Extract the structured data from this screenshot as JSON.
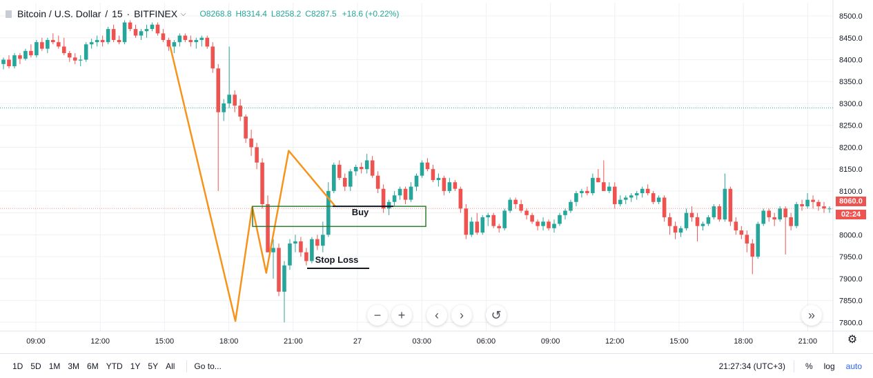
{
  "legend": {
    "symbol": "Bitcoin / U.S. Dollar",
    "interval": "15",
    "exchange": "BITFINEX",
    "o_label": "O",
    "o": "8268.8",
    "h_label": "H",
    "h": "8314.4",
    "l_label": "L",
    "l": "8258.2",
    "c_label": "C",
    "c": "8287.5",
    "change": "+18.6 (+0.22%)"
  },
  "chart_data": {
    "type": "candlestick",
    "title": "Bitcoin / U.S. Dollar",
    "xlabel": "",
    "ylabel": "",
    "ylim": [
      7780,
      8530
    ],
    "y_ticks": [
      7800,
      7850,
      7900,
      7950,
      8000,
      8050,
      8100,
      8150,
      8200,
      8250,
      8300,
      8350,
      8400,
      8450,
      8500
    ],
    "x_ticks": [
      "09:00",
      "12:00",
      "15:00",
      "18:00",
      "21:00",
      "27",
      "03:00",
      "06:00",
      "09:00",
      "12:00",
      "15:00",
      "18:00",
      "21:00"
    ],
    "last_price": "8060.0",
    "countdown": "02:24",
    "reference_price_line": 8290,
    "grid": true,
    "candles": [
      [
        8390,
        8405,
        8378,
        8400
      ],
      [
        8400,
        8410,
        8380,
        8385
      ],
      [
        8385,
        8415,
        8380,
        8410
      ],
      [
        8410,
        8415,
        8390,
        8402
      ],
      [
        8402,
        8425,
        8398,
        8420
      ],
      [
        8420,
        8435,
        8405,
        8410
      ],
      [
        8410,
        8445,
        8405,
        8440
      ],
      [
        8440,
        8450,
        8420,
        8425
      ],
      [
        8425,
        8450,
        8415,
        8445
      ],
      [
        8445,
        8460,
        8435,
        8440
      ],
      [
        8440,
        8455,
        8425,
        8430
      ],
      [
        8430,
        8450,
        8410,
        8415
      ],
      [
        8415,
        8420,
        8395,
        8405
      ],
      [
        8405,
        8415,
        8390,
        8398
      ],
      [
        8398,
        8410,
        8385,
        8400
      ],
      [
        8400,
        8440,
        8395,
        8435
      ],
      [
        8435,
        8448,
        8425,
        8440
      ],
      [
        8440,
        8455,
        8430,
        8445
      ],
      [
        8445,
        8455,
        8430,
        8440
      ],
      [
        8440,
        8475,
        8435,
        8470
      ],
      [
        8470,
        8480,
        8440,
        8445
      ],
      [
        8445,
        8455,
        8435,
        8440
      ],
      [
        8440,
        8490,
        8435,
        8485
      ],
      [
        8485,
        8490,
        8465,
        8470
      ],
      [
        8470,
        8480,
        8450,
        8455
      ],
      [
        8455,
        8470,
        8445,
        8465
      ],
      [
        8465,
        8480,
        8450,
        8470
      ],
      [
        8470,
        8485,
        8465,
        8480
      ],
      [
        8480,
        8485,
        8455,
        8460
      ],
      [
        8460,
        8470,
        8440,
        8445
      ],
      [
        8445,
        8450,
        8420,
        8430
      ],
      [
        8430,
        8445,
        8415,
        8440
      ],
      [
        8440,
        8460,
        8430,
        8455
      ],
      [
        8455,
        8460,
        8440,
        8445
      ],
      [
        8445,
        8455,
        8430,
        8440
      ],
      [
        8440,
        8450,
        8425,
        8445
      ],
      [
        8445,
        8455,
        8430,
        8450
      ],
      [
        8450,
        8455,
        8425,
        8430
      ],
      [
        8430,
        8440,
        8370,
        8380
      ],
      [
        8380,
        8390,
        8100,
        8280
      ],
      [
        8280,
        8310,
        8260,
        8300
      ],
      [
        8300,
        8430,
        8290,
        8320
      ],
      [
        8320,
        8330,
        8280,
        8295
      ],
      [
        8295,
        8310,
        8260,
        8270
      ],
      [
        8270,
        8275,
        8210,
        8220
      ],
      [
        8220,
        8240,
        8180,
        8200
      ],
      [
        8200,
        8210,
        8150,
        8165
      ],
      [
        8165,
        8175,
        8060,
        8070
      ],
      [
        8070,
        8090,
        7960,
        7960
      ],
      [
        7960,
        7990,
        7900,
        7970
      ],
      [
        7970,
        7980,
        7860,
        7870
      ],
      [
        7870,
        7940,
        7800,
        7930
      ],
      [
        7930,
        7990,
        7920,
        7980
      ],
      [
        7980,
        8000,
        7960,
        7985
      ],
      [
        7985,
        7995,
        7950,
        7960
      ],
      [
        7960,
        7970,
        7930,
        7940
      ],
      [
        7940,
        7995,
        7935,
        7990
      ],
      [
        7990,
        8000,
        7965,
        7975
      ],
      [
        7975,
        8030,
        7960,
        8000
      ],
      [
        8000,
        8120,
        7995,
        8100
      ],
      [
        8100,
        8165,
        8095,
        8160
      ],
      [
        8160,
        8170,
        8125,
        8130
      ],
      [
        8130,
        8140,
        8100,
        8110
      ],
      [
        8110,
        8150,
        8100,
        8145
      ],
      [
        8145,
        8160,
        8135,
        8155
      ],
      [
        8155,
        8165,
        8140,
        8150
      ],
      [
        8150,
        8185,
        8140,
        8170
      ],
      [
        8170,
        8180,
        8130,
        8135
      ],
      [
        8135,
        8145,
        8095,
        8105
      ],
      [
        8105,
        8115,
        8050,
        8060
      ],
      [
        8060,
        8080,
        8045,
        8075
      ],
      [
        8075,
        8100,
        8065,
        8090
      ],
      [
        8090,
        8110,
        8080,
        8105
      ],
      [
        8105,
        8110,
        8070,
        8080
      ],
      [
        8080,
        8120,
        8075,
        8110
      ],
      [
        8110,
        8140,
        8100,
        8135
      ],
      [
        8135,
        8170,
        8130,
        8165
      ],
      [
        8165,
        8175,
        8145,
        8150
      ],
      [
        8150,
        8160,
        8120,
        8125
      ],
      [
        8125,
        8140,
        8110,
        8130
      ],
      [
        8130,
        8135,
        8090,
        8100
      ],
      [
        8100,
        8130,
        8095,
        8120
      ],
      [
        8120,
        8125,
        8100,
        8105
      ],
      [
        8105,
        8110,
        8050,
        8060
      ],
      [
        8060,
        8070,
        7990,
        8000
      ],
      [
        8000,
        8040,
        7995,
        8030
      ],
      [
        8030,
        8050,
        8000,
        8005
      ],
      [
        8005,
        8045,
        8000,
        8040
      ],
      [
        8040,
        8050,
        8020,
        8045
      ],
      [
        8045,
        8050,
        8015,
        8020
      ],
      [
        8020,
        8025,
        8005,
        8015
      ],
      [
        8015,
        8060,
        8010,
        8055
      ],
      [
        8055,
        8085,
        8050,
        8080
      ],
      [
        8080,
        8085,
        8060,
        8070
      ],
      [
        8070,
        8080,
        8050,
        8055
      ],
      [
        8055,
        8060,
        8035,
        8045
      ],
      [
        8045,
        8050,
        8025,
        8030
      ],
      [
        8030,
        8035,
        8010,
        8020
      ],
      [
        8020,
        8040,
        8010,
        8030
      ],
      [
        8030,
        8035,
        8010,
        8015
      ],
      [
        8015,
        8035,
        8005,
        8025
      ],
      [
        8025,
        8050,
        8020,
        8045
      ],
      [
        8045,
        8060,
        8035,
        8055
      ],
      [
        8055,
        8080,
        8050,
        8075
      ],
      [
        8075,
        8100,
        8065,
        8095
      ],
      [
        8095,
        8105,
        8085,
        8100
      ],
      [
        8100,
        8110,
        8090,
        8095
      ],
      [
        8095,
        8140,
        8090,
        8130
      ],
      [
        8130,
        8150,
        8120,
        8120
      ],
      [
        8120,
        8170,
        8100,
        8100
      ],
      [
        8100,
        8120,
        8095,
        8110
      ],
      [
        8110,
        8120,
        8060,
        8070
      ],
      [
        8070,
        8090,
        8065,
        8080
      ],
      [
        8080,
        8090,
        8070,
        8085
      ],
      [
        8085,
        8095,
        8075,
        8090
      ],
      [
        8090,
        8100,
        8080,
        8095
      ],
      [
        8095,
        8110,
        8085,
        8105
      ],
      [
        8105,
        8115,
        8090,
        8095
      ],
      [
        8095,
        8100,
        8070,
        8075
      ],
      [
        8075,
        8090,
        8070,
        8085
      ],
      [
        8085,
        8090,
        8030,
        8040
      ],
      [
        8040,
        8050,
        8000,
        8020
      ],
      [
        8020,
        8030,
        7990,
        8005
      ],
      [
        8005,
        8020,
        7995,
        8015
      ],
      [
        8015,
        8060,
        8010,
        8050
      ],
      [
        8050,
        8065,
        8030,
        8040
      ],
      [
        8040,
        8050,
        7985,
        8020
      ],
      [
        8020,
        8030,
        8010,
        8025
      ],
      [
        8025,
        8045,
        8020,
        8040
      ],
      [
        8040,
        8070,
        8035,
        8065
      ],
      [
        8065,
        8070,
        8030,
        8035
      ],
      [
        8035,
        8140,
        8030,
        8105
      ],
      [
        8105,
        8110,
        8020,
        8030
      ],
      [
        8030,
        8040,
        8000,
        8010
      ],
      [
        8010,
        8020,
        7990,
        8000
      ],
      [
        8000,
        8010,
        7960,
        7980
      ],
      [
        7980,
        7990,
        7910,
        7950
      ],
      [
        7950,
        8030,
        7945,
        8025
      ],
      [
        8025,
        8060,
        8020,
        8055
      ],
      [
        8055,
        8060,
        8030,
        8040
      ],
      [
        8040,
        8050,
        8020,
        8035
      ],
      [
        8035,
        8065,
        8030,
        8060
      ],
      [
        8060,
        8065,
        7955,
        8040
      ],
      [
        8040,
        8050,
        8010,
        8020
      ],
      [
        8020,
        8075,
        8015,
        8070
      ],
      [
        8070,
        8080,
        8055,
        8065
      ],
      [
        8065,
        8095,
        8060,
        8080
      ],
      [
        8080,
        8090,
        8060,
        8075
      ],
      [
        8075,
        8080,
        8055,
        8065
      ],
      [
        8065,
        8075,
        8050,
        8060
      ],
      [
        8060,
        8065,
        8050,
        8060
      ]
    ],
    "drawn_pattern": [
      [
        0.2044,
        8430
      ],
      [
        0.2826,
        7803
      ],
      [
        0.3028,
        8064
      ],
      [
        0.3196,
        7913
      ],
      [
        0.3466,
        8192
      ],
      [
        0.4021,
        8066
      ]
    ],
    "buy_zone": {
      "price_top": 8065,
      "price_bottom": 8019,
      "label": "Buy"
    },
    "stop_loss_label": "Stop Loss",
    "colors": {
      "up": "#26a69a",
      "down": "#ef5350",
      "pattern": "#f7931a",
      "zone": "#2e7d32",
      "grid": "#eef0f3"
    }
  },
  "bottom_bar": {
    "ranges": [
      "1D",
      "5D",
      "1M",
      "3M",
      "6M",
      "YTD",
      "1Y",
      "5Y",
      "All"
    ],
    "goto": "Go to...",
    "clock": "21:27:34 (UTC+3)",
    "pct": "%",
    "log": "log",
    "auto": "auto"
  },
  "controls": {
    "minus": "−",
    "plus": "+",
    "left": "‹",
    "right": "›",
    "reset": "↺",
    "fwd": "»",
    "gear": "⚙"
  }
}
